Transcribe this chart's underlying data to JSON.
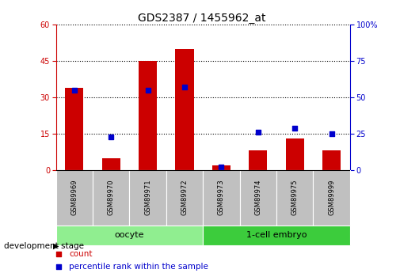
{
  "title": "GDS2387 / 1455962_at",
  "samples": [
    "GSM89969",
    "GSM89970",
    "GSM89971",
    "GSM89972",
    "GSM89973",
    "GSM89974",
    "GSM89975",
    "GSM89999"
  ],
  "counts": [
    34,
    5,
    45,
    50,
    2,
    8,
    13,
    8
  ],
  "percentiles": [
    55,
    23,
    55,
    57,
    2,
    26,
    29,
    25
  ],
  "groups": [
    {
      "label": "oocyte",
      "start": 0,
      "end": 4,
      "color": "#90EE90"
    },
    {
      "label": "1-cell embryo",
      "start": 4,
      "end": 8,
      "color": "#3CCC3C"
    }
  ],
  "left_ylim": [
    0,
    60
  ],
  "right_ylim": [
    0,
    100
  ],
  "left_yticks": [
    0,
    15,
    30,
    45,
    60
  ],
  "right_yticks": [
    0,
    25,
    50,
    75,
    100
  ],
  "left_tick_color": "#CC0000",
  "right_tick_color": "#0000CC",
  "bar_color": "#CC0000",
  "dot_color": "#0000CC",
  "xlabel_area_color": "#C0C0C0",
  "legend_count_color": "#CC0000",
  "legend_pct_color": "#0000CC",
  "bar_width": 0.5
}
